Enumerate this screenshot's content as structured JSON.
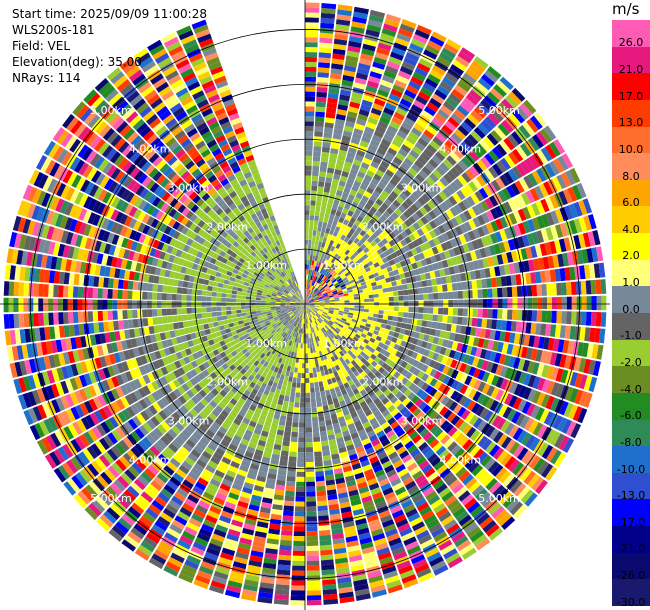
{
  "info": {
    "start_time": "Start time: 2025/09/09 11:00:28",
    "instrument": "WLS200s-181",
    "field": "Field: VEL",
    "elevation": "Elevation(deg): 35.00",
    "nrays": "NRays: 114"
  },
  "chart_data": {
    "type": "heatmap",
    "subtype": "ppi-polar",
    "field": "VEL",
    "elevation_deg": 35.0,
    "n_rays": 114,
    "range_rings_km": [
      1.0,
      2.0,
      3.0,
      4.0,
      5.0
    ],
    "range_labels": [
      "1.00km",
      "2.00km",
      "3.00km",
      "4.00km",
      "5.00km"
    ],
    "max_range_km": 5.5,
    "gap_azimuth_deg": [
      338,
      360
    ],
    "colorbar": {
      "unit": "m/s",
      "labels": [
        "26.0",
        "21.0",
        "17.0",
        "13.0",
        "10.0",
        "8.0",
        "6.0",
        "4.0",
        "2.0",
        "1.0",
        "0.0",
        "-1.0",
        "-2.0",
        "-4.0",
        "-6.0",
        "-8.0",
        "-10.0",
        "-13.0",
        "-17.0",
        "-21.0",
        "-26.0",
        "-30.0"
      ],
      "colors": [
        "#ff5ab4",
        "#e6197f",
        "#ff0000",
        "#ff3c00",
        "#ff6e2d",
        "#ff8c5a",
        "#ffa500",
        "#ffcc00",
        "#ffff00",
        "#ffff78",
        "#778899",
        "#646464",
        "#9acd32",
        "#6b8e23",
        "#228b22",
        "#2e8b57",
        "#1f6fcc",
        "#2e4fcf",
        "#0000ff",
        "#00008b",
        "#0a0a6e",
        "#191970"
      ]
    }
  }
}
